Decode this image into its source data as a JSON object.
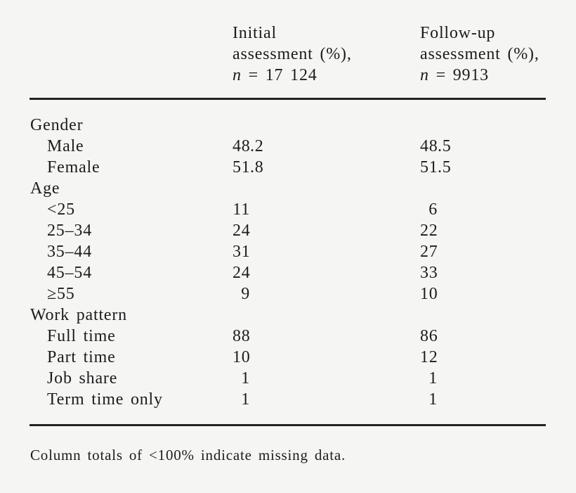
{
  "colors": {
    "background": "#f5f5f4",
    "text": "#1c1c1c",
    "rule": "#232323"
  },
  "table": {
    "columns": [
      {
        "line1": "Initial",
        "line2": "assessment (%),",
        "n_label": "n",
        "n_rest": " = 17 124"
      },
      {
        "line1": "Follow-up",
        "line2": "assessment (%),",
        "n_label": "n",
        "n_rest": " = 9913"
      }
    ],
    "rows": [
      {
        "label": "Gender",
        "type": "section",
        "initial": "",
        "followup": ""
      },
      {
        "label": "Male",
        "type": "item",
        "initial": "48.2",
        "followup": "48.5"
      },
      {
        "label": "Female",
        "type": "item",
        "initial": "51.8",
        "followup": "51.5"
      },
      {
        "label": "Age",
        "type": "section",
        "initial": "",
        "followup": ""
      },
      {
        "label": "<25",
        "type": "item",
        "initial": "11",
        "followup": "6"
      },
      {
        "label": "25–34",
        "type": "item",
        "initial": "24",
        "followup": "22"
      },
      {
        "label": "35–44",
        "type": "item",
        "initial": "31",
        "followup": "27"
      },
      {
        "label": "45–54",
        "type": "item",
        "initial": "24",
        "followup": "33"
      },
      {
        "label": "≥55",
        "type": "item",
        "initial": "9",
        "followup": "10"
      },
      {
        "label": "Work pattern",
        "type": "section",
        "initial": "",
        "followup": ""
      },
      {
        "label": "Full time",
        "type": "item",
        "initial": "88",
        "followup": "86"
      },
      {
        "label": "Part time",
        "type": "item",
        "initial": "10",
        "followup": "12"
      },
      {
        "label": "Job share",
        "type": "item",
        "initial": "1",
        "followup": "1"
      },
      {
        "label": "Term time only",
        "type": "item",
        "initial": "1",
        "followup": "1"
      }
    ],
    "footnote": "Column totals of <100% indicate missing data."
  }
}
